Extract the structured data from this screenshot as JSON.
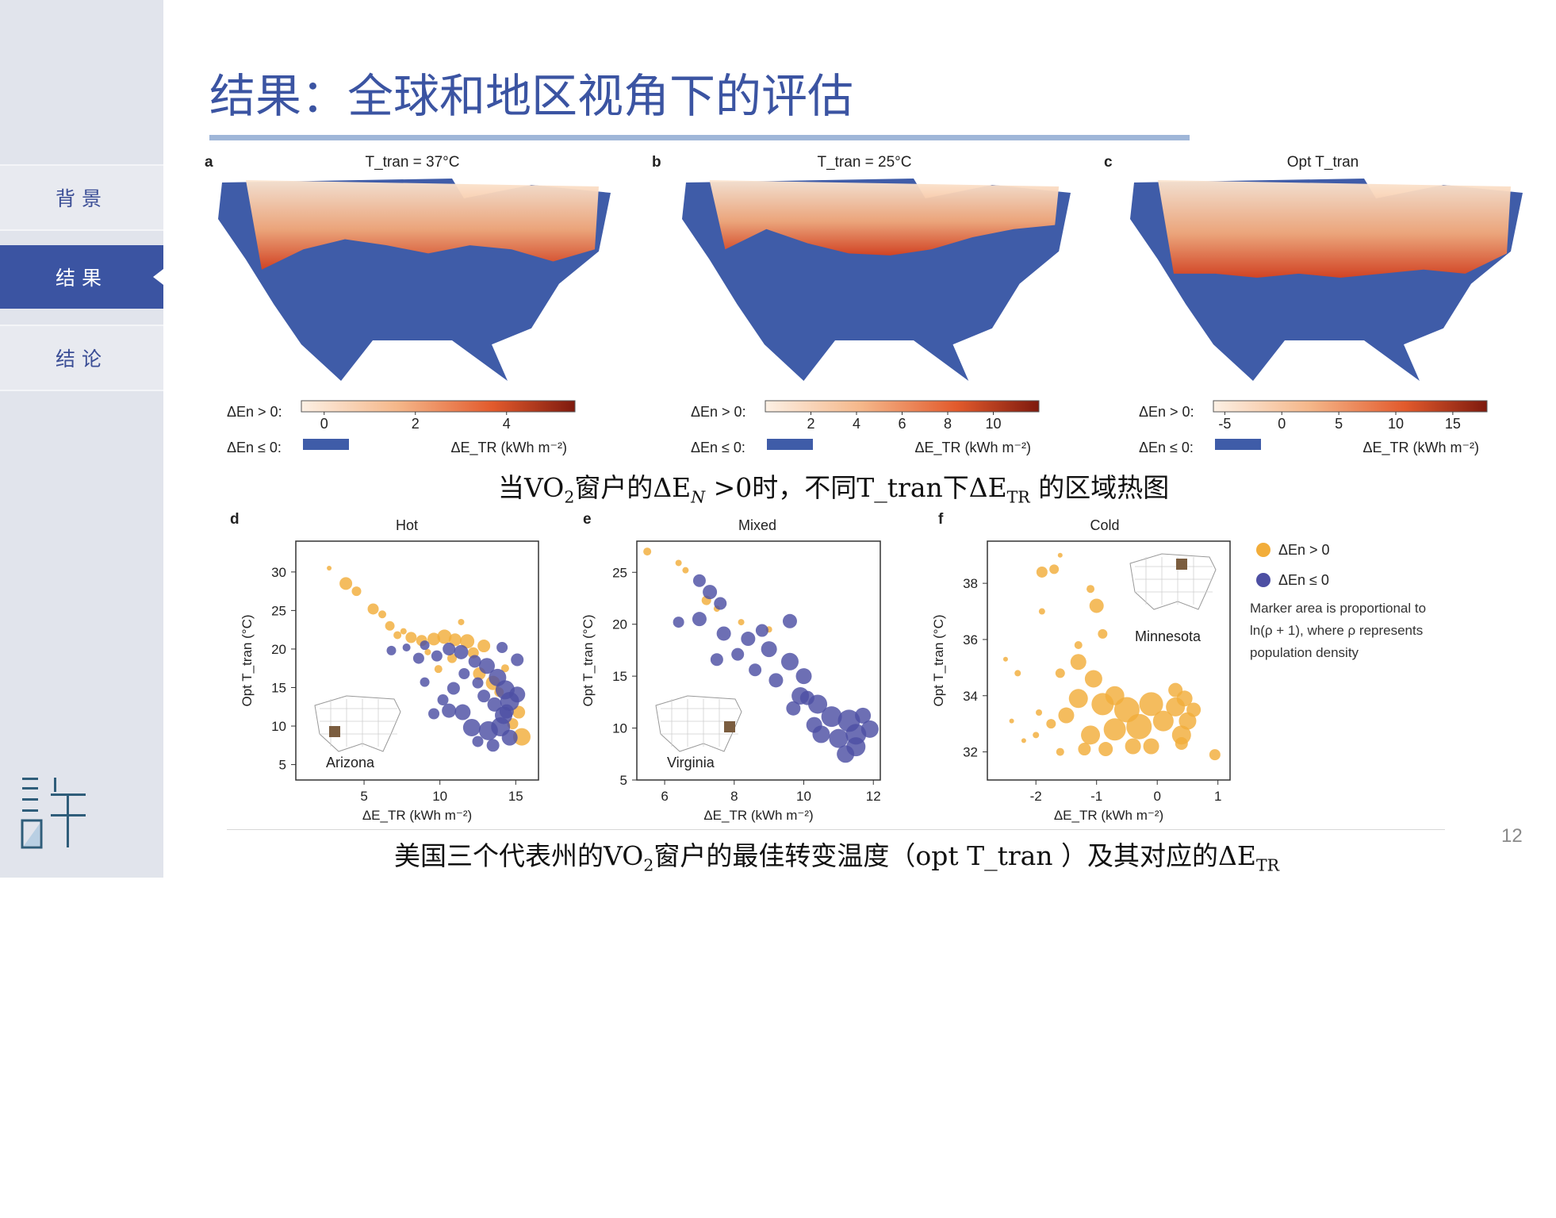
{
  "sidebar": {
    "items": [
      {
        "label": "背景",
        "active": false
      },
      {
        "label": "结果",
        "active": true
      },
      {
        "label": "结论",
        "active": false
      }
    ],
    "colors": {
      "active": "#3b54a2",
      "inactive_text": "#3b4e96",
      "bg": "#e1e4ec"
    }
  },
  "slide": {
    "title": "结果：全球和地区视角下的评估",
    "page_number": "12",
    "caption_top": {
      "pre": "当VO",
      "sub1": "2",
      "mid": "窗户的ΔE",
      "sub2": "N",
      "post": " >0时，不同T_tran下ΔE",
      "sub3": "TR",
      "end": " 的区域热图"
    },
    "caption_bottom": {
      "pre": "美国三个代表州的VO",
      "sub1": "2",
      "mid": "窗户的最佳转变温度（opt T_tran ）及其对应的ΔE",
      "sub2": "TR"
    }
  },
  "chart_data": [
    {
      "type": "heatmap",
      "panel": "a",
      "title": "T_tran = 37°C",
      "colorbar": {
        "label_pos": "ΔEn > 0:",
        "label_neg": "ΔEn ≤ 0:",
        "ticks": [
          "0",
          "2",
          "4"
        ],
        "range": [
          -0.5,
          5.5
        ],
        "unit": "ΔE_TR (kWh m⁻²)"
      },
      "colors": {
        "negative": "#3f5ca8",
        "low": "#fbeadb",
        "high": "#8c1d10"
      }
    },
    {
      "type": "heatmap",
      "panel": "b",
      "title": "T_tran = 25°C",
      "colorbar": {
        "label_pos": "ΔEn > 0:",
        "label_neg": "ΔEn ≤ 0:",
        "ticks": [
          "2",
          "4",
          "6",
          "8",
          "10"
        ],
        "range": [
          0,
          12
        ],
        "unit": "ΔE_TR (kWh m⁻²)"
      },
      "colors": {
        "negative": "#3f5ca8",
        "low": "#fbeadb",
        "high": "#8c1d10"
      }
    },
    {
      "type": "heatmap",
      "panel": "c",
      "title": "Opt T_tran",
      "colorbar": {
        "label_pos": "ΔEn > 0:",
        "label_neg": "ΔEn ≤ 0:",
        "ticks": [
          "-5",
          "0",
          "5",
          "10",
          "15"
        ],
        "range": [
          -6,
          18
        ],
        "unit": "ΔE_TR (kWh m⁻²)"
      },
      "colors": {
        "negative": "#3f5ca8",
        "low": "#fbeadb",
        "high": "#8c1d10"
      }
    },
    {
      "type": "scatter",
      "panel": "d",
      "title": "Hot",
      "state": "Arizona",
      "xlabel": "ΔE_TR (kWh m⁻²)",
      "ylabel": "Opt T_tran (°C)",
      "xlim": [
        0.5,
        16.5
      ],
      "ylim": [
        3,
        34
      ],
      "xticks": [
        5,
        10,
        15
      ],
      "yticks": [
        5,
        10,
        15,
        20,
        25,
        30
      ],
      "legend": [
        {
          "label": "ΔEn > 0",
          "color": "#f2ad3a"
        },
        {
          "label": "ΔEn ≤ 0",
          "color": "#4d4fa3"
        }
      ],
      "series": [
        {
          "name": "ΔEn > 0",
          "color": "#f2ad3a",
          "points": [
            [
              2.7,
              30.5,
              3
            ],
            [
              3.8,
              28.5,
              8
            ],
            [
              4.5,
              27.5,
              6
            ],
            [
              5.6,
              25.2,
              7
            ],
            [
              6.2,
              24.5,
              5
            ],
            [
              6.7,
              23,
              6
            ],
            [
              7.2,
              21.8,
              5
            ],
            [
              8.1,
              21.5,
              7
            ],
            [
              8.8,
              21.1,
              7
            ],
            [
              9.6,
              21.3,
              8
            ],
            [
              10.3,
              21.6,
              9
            ],
            [
              11.0,
              21.2,
              8
            ],
            [
              11.8,
              21.0,
              9
            ],
            [
              12.2,
              19.5,
              7
            ],
            [
              12.9,
              20.4,
              8
            ],
            [
              10.8,
              18.8,
              6
            ],
            [
              9.9,
              17.4,
              5
            ],
            [
              12.6,
              16.8,
              8
            ],
            [
              13.5,
              15.6,
              9
            ],
            [
              14.8,
              10.3,
              7
            ],
            [
              15.4,
              8.6,
              11
            ],
            [
              15.2,
              11.8,
              8
            ],
            [
              13.9,
              14.4,
              6
            ],
            [
              11.4,
              23.5,
              4
            ],
            [
              7.6,
              22.3,
              4
            ],
            [
              9.2,
              19.6,
              4
            ],
            [
              14.3,
              17.5,
              5
            ]
          ]
        },
        {
          "name": "ΔEn ≤ 0",
          "color": "#4d4fa3",
          "points": [
            [
              6.8,
              19.8,
              6
            ],
            [
              7.8,
              20.2,
              5
            ],
            [
              8.6,
              18.8,
              7
            ],
            [
              9.0,
              20.5,
              6
            ],
            [
              9.8,
              19.1,
              7
            ],
            [
              10.6,
              20.0,
              8
            ],
            [
              11.4,
              19.6,
              9
            ],
            [
              12.3,
              18.4,
              8
            ],
            [
              13.1,
              17.8,
              10
            ],
            [
              13.8,
              16.3,
              11
            ],
            [
              14.3,
              14.7,
              12
            ],
            [
              14.6,
              13.2,
              12
            ],
            [
              14.2,
              11.4,
              11
            ],
            [
              13.6,
              12.8,
              9
            ],
            [
              12.9,
              13.9,
              8
            ],
            [
              12.5,
              15.6,
              7
            ],
            [
              11.6,
              16.8,
              7
            ],
            [
              10.9,
              14.9,
              8
            ],
            [
              10.2,
              13.4,
              7
            ],
            [
              10.6,
              12.0,
              9
            ],
            [
              11.5,
              11.8,
              10
            ],
            [
              12.1,
              9.8,
              11
            ],
            [
              13.2,
              9.4,
              12
            ],
            [
              14.0,
              9.9,
              12
            ],
            [
              14.6,
              8.5,
              10
            ],
            [
              13.5,
              7.5,
              8
            ],
            [
              12.5,
              8.0,
              7
            ],
            [
              9.6,
              11.6,
              7
            ],
            [
              9.0,
              15.7,
              6
            ],
            [
              15.1,
              14.1,
              10
            ],
            [
              15.1,
              18.6,
              8
            ],
            [
              14.1,
              20.2,
              7
            ],
            [
              14.4,
              11.9,
              9
            ]
          ]
        }
      ]
    },
    {
      "type": "scatter",
      "panel": "e",
      "title": "Mixed",
      "state": "Virginia",
      "xlabel": "ΔE_TR (kWh m⁻²)",
      "ylabel": "Opt T_tran (°C)",
      "xlim": [
        5.2,
        12.2
      ],
      "ylim": [
        5,
        28
      ],
      "xticks": [
        6,
        8,
        10,
        12
      ],
      "yticks": [
        5,
        10,
        15,
        20,
        25
      ],
      "series": [
        {
          "name": "ΔEn > 0",
          "color": "#f2ad3a",
          "points": [
            [
              5.5,
              27,
              5
            ],
            [
              6.4,
              25.9,
              4
            ],
            [
              6.6,
              25.2,
              4
            ],
            [
              7.2,
              22.3,
              6
            ],
            [
              7.5,
              21.5,
              4
            ],
            [
              8.2,
              20.2,
              4
            ],
            [
              9.0,
              19.5,
              4
            ]
          ]
        },
        {
          "name": "ΔEn ≤ 0",
          "color": "#4d4fa3",
          "points": [
            [
              7.0,
              24.2,
              8
            ],
            [
              7.3,
              23.1,
              9
            ],
            [
              7.6,
              22.0,
              8
            ],
            [
              6.4,
              20.2,
              7
            ],
            [
              7.0,
              20.5,
              9
            ],
            [
              7.7,
              19.1,
              9
            ],
            [
              8.4,
              18.6,
              9
            ],
            [
              8.8,
              19.4,
              8
            ],
            [
              9.0,
              17.6,
              10
            ],
            [
              8.1,
              17.1,
              8
            ],
            [
              7.5,
              16.6,
              8
            ],
            [
              9.6,
              20.3,
              9
            ],
            [
              9.6,
              16.4,
              11
            ],
            [
              10.0,
              15.0,
              10
            ],
            [
              9.2,
              14.6,
              9
            ],
            [
              8.6,
              15.6,
              8
            ],
            [
              9.9,
              13.1,
              11
            ],
            [
              10.4,
              12.3,
              12
            ],
            [
              10.8,
              11.1,
              13
            ],
            [
              11.3,
              10.7,
              14
            ],
            [
              11.5,
              9.4,
              13
            ],
            [
              11.0,
              9.0,
              12
            ],
            [
              10.5,
              9.4,
              11
            ],
            [
              11.5,
              8.2,
              12
            ],
            [
              11.2,
              7.5,
              11
            ],
            [
              10.3,
              10.3,
              10
            ],
            [
              9.7,
              11.9,
              9
            ],
            [
              10.1,
              12.9,
              9
            ],
            [
              11.7,
              11.2,
              10
            ],
            [
              11.9,
              9.9,
              11
            ]
          ]
        }
      ]
    },
    {
      "type": "scatter",
      "panel": "f",
      "title": "Cold",
      "state": "Minnesota",
      "xlabel": "ΔE_TR (kWh m⁻²)",
      "ylabel": "Opt T_tran (°C)",
      "xlim": [
        -2.8,
        1.2
      ],
      "ylim": [
        31,
        39.5
      ],
      "xticks": [
        -2,
        -1,
        0,
        1
      ],
      "yticks": [
        32,
        34,
        36,
        38
      ],
      "legend_note": "Marker area is proportional to ln(ρ + 1), where ρ represents population density",
      "series": [
        {
          "name": "ΔEn > 0",
          "color": "#f2ad3a",
          "points": [
            [
              -1.6,
              39.0,
              3
            ],
            [
              -1.9,
              38.4,
              7
            ],
            [
              -1.7,
              38.5,
              6
            ],
            [
              -1.1,
              37.8,
              5
            ],
            [
              -1.9,
              37.0,
              4
            ],
            [
              -1.0,
              37.2,
              9
            ],
            [
              -0.9,
              36.2,
              6
            ],
            [
              -1.3,
              35.8,
              5
            ],
            [
              -2.5,
              35.3,
              3
            ],
            [
              -1.3,
              35.2,
              10
            ],
            [
              -1.6,
              34.8,
              6
            ],
            [
              -2.3,
              34.8,
              4
            ],
            [
              -1.05,
              34.6,
              11
            ],
            [
              -1.3,
              33.9,
              12
            ],
            [
              -1.5,
              33.3,
              10
            ],
            [
              -1.1,
              32.6,
              12
            ],
            [
              -0.9,
              33.7,
              14
            ],
            [
              -0.7,
              32.8,
              14
            ],
            [
              -0.5,
              33.5,
              16
            ],
            [
              -0.3,
              32.9,
              16
            ],
            [
              -0.1,
              33.7,
              15
            ],
            [
              0.1,
              33.1,
              13
            ],
            [
              0.3,
              33.6,
              12
            ],
            [
              0.4,
              32.6,
              12
            ],
            [
              0.5,
              33.1,
              11
            ],
            [
              0.45,
              33.9,
              10
            ],
            [
              -0.7,
              34.0,
              12
            ],
            [
              -1.2,
              32.1,
              8
            ],
            [
              -0.4,
              32.2,
              10
            ],
            [
              -1.75,
              33.0,
              6
            ],
            [
              -2.0,
              32.6,
              4
            ],
            [
              -2.2,
              32.4,
              3
            ],
            [
              0.95,
              31.9,
              7
            ],
            [
              0.4,
              32.3,
              8
            ],
            [
              0.3,
              34.2,
              9
            ],
            [
              -1.6,
              32.0,
              5
            ],
            [
              -0.1,
              32.2,
              10
            ],
            [
              -0.85,
              32.1,
              9
            ],
            [
              -1.95,
              33.4,
              4
            ],
            [
              -2.4,
              33.1,
              3
            ],
            [
              0.6,
              33.5,
              9
            ]
          ]
        }
      ]
    }
  ]
}
